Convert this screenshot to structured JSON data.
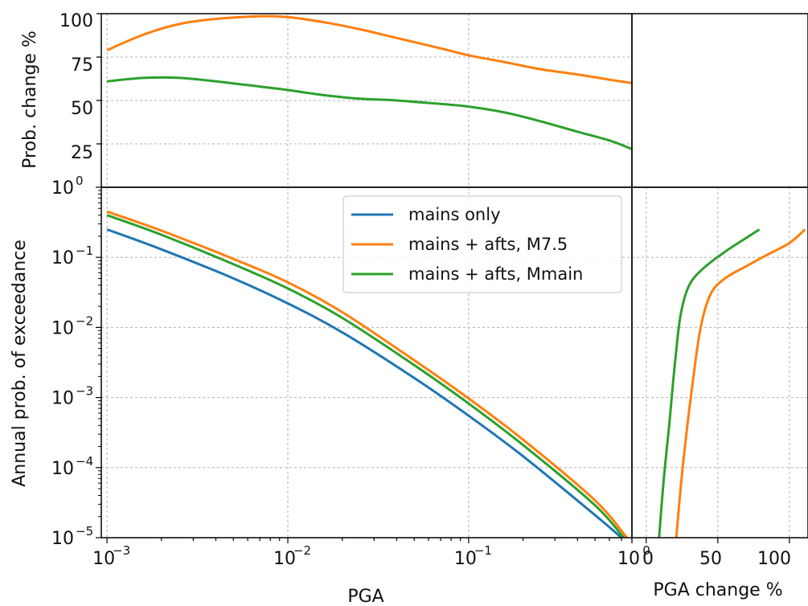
{
  "chart_data": [
    {
      "id": "top",
      "type": "line",
      "xscale": "log",
      "xlim": [
        0.00093,
        0.8
      ],
      "ylim": [
        0,
        100
      ],
      "ylabel": "Prob. change %",
      "yticks": [
        "25",
        "50",
        "75",
        "100"
      ],
      "grid": true,
      "series": [
        {
          "color": "#ff7f0e",
          "x": [
            0.001,
            0.0016,
            0.0025,
            0.004,
            0.007,
            0.01,
            0.016,
            0.025,
            0.04,
            0.07,
            0.1,
            0.16,
            0.25,
            0.4,
            0.6,
            0.8
          ],
          "y": [
            79,
            88,
            94,
            97,
            98.5,
            98,
            95,
            91,
            86,
            80,
            76,
            72,
            68,
            65,
            62,
            60
          ]
        },
        {
          "color": "#2ca02c",
          "x": [
            0.001,
            0.0016,
            0.0025,
            0.004,
            0.007,
            0.01,
            0.016,
            0.025,
            0.04,
            0.07,
            0.1,
            0.16,
            0.25,
            0.4,
            0.6,
            0.8
          ],
          "y": [
            61,
            63,
            63,
            61,
            58,
            56,
            53,
            51,
            50,
            48,
            46.5,
            43,
            38,
            32,
            27,
            22
          ]
        }
      ]
    },
    {
      "id": "top-right",
      "type": "line",
      "series": []
    },
    {
      "id": "main",
      "type": "line",
      "xscale": "log",
      "yscale": "log",
      "xlim": [
        0.00093,
        0.8
      ],
      "ylim": [
        1e-05,
        1
      ],
      "xlabel": "PGA",
      "ylabel": "Annual prob. of exceedance",
      "grid": true,
      "legend": "upper-right",
      "series": [
        {
          "name": "mains only",
          "color": "#1f77b4",
          "x": [
            0.001,
            0.002,
            0.005,
            0.01,
            0.02,
            0.05,
            0.1,
            0.2,
            0.5,
            0.7
          ],
          "y": [
            0.25,
            0.13,
            0.05,
            0.022,
            0.0085,
            0.0019,
            0.00055,
            0.000145,
            2.1e-05,
            1e-05
          ]
        },
        {
          "name": "mains + afts, M7.5",
          "color": "#ff7f0e",
          "x": [
            0.001,
            0.002,
            0.005,
            0.01,
            0.02,
            0.05,
            0.1,
            0.2,
            0.5,
            0.75
          ],
          "y": [
            0.45,
            0.24,
            0.095,
            0.044,
            0.0165,
            0.0034,
            0.00097,
            0.00025,
            3.4e-05,
            1e-05
          ]
        },
        {
          "name": "mains + afts, Mmain",
          "color": "#2ca02c",
          "x": [
            0.001,
            0.002,
            0.005,
            0.01,
            0.02,
            0.05,
            0.1,
            0.2,
            0.5,
            0.72
          ],
          "y": [
            0.4,
            0.21,
            0.08,
            0.036,
            0.0137,
            0.0029,
            0.00082,
            0.00021,
            2.9e-05,
            1e-05
          ]
        }
      ]
    },
    {
      "id": "side",
      "type": "line",
      "yscale": "log",
      "xlim": [
        -10,
        113
      ],
      "ylim": [
        1e-05,
        1
      ],
      "xlabel": "PGA change %",
      "xticks": [
        "0",
        "50",
        "100"
      ],
      "grid": true,
      "series": [
        {
          "color": "#ff7f0e",
          "x": [
            21,
            24,
            28,
            33,
            38,
            45,
            55,
            70,
            85,
            100,
            111
          ],
          "y": [
            1e-05,
            5e-05,
            0.0003,
            0.002,
            0.01,
            0.03,
            0.05,
            0.075,
            0.11,
            0.16,
            0.25
          ]
        },
        {
          "color": "#2ca02c",
          "x": [
            9,
            12,
            16,
            20,
            24,
            30,
            40,
            55,
            70,
            79
          ],
          "y": [
            1e-05,
            6e-05,
            0.0004,
            0.003,
            0.015,
            0.04,
            0.07,
            0.12,
            0.19,
            0.25
          ]
        }
      ]
    }
  ]
}
